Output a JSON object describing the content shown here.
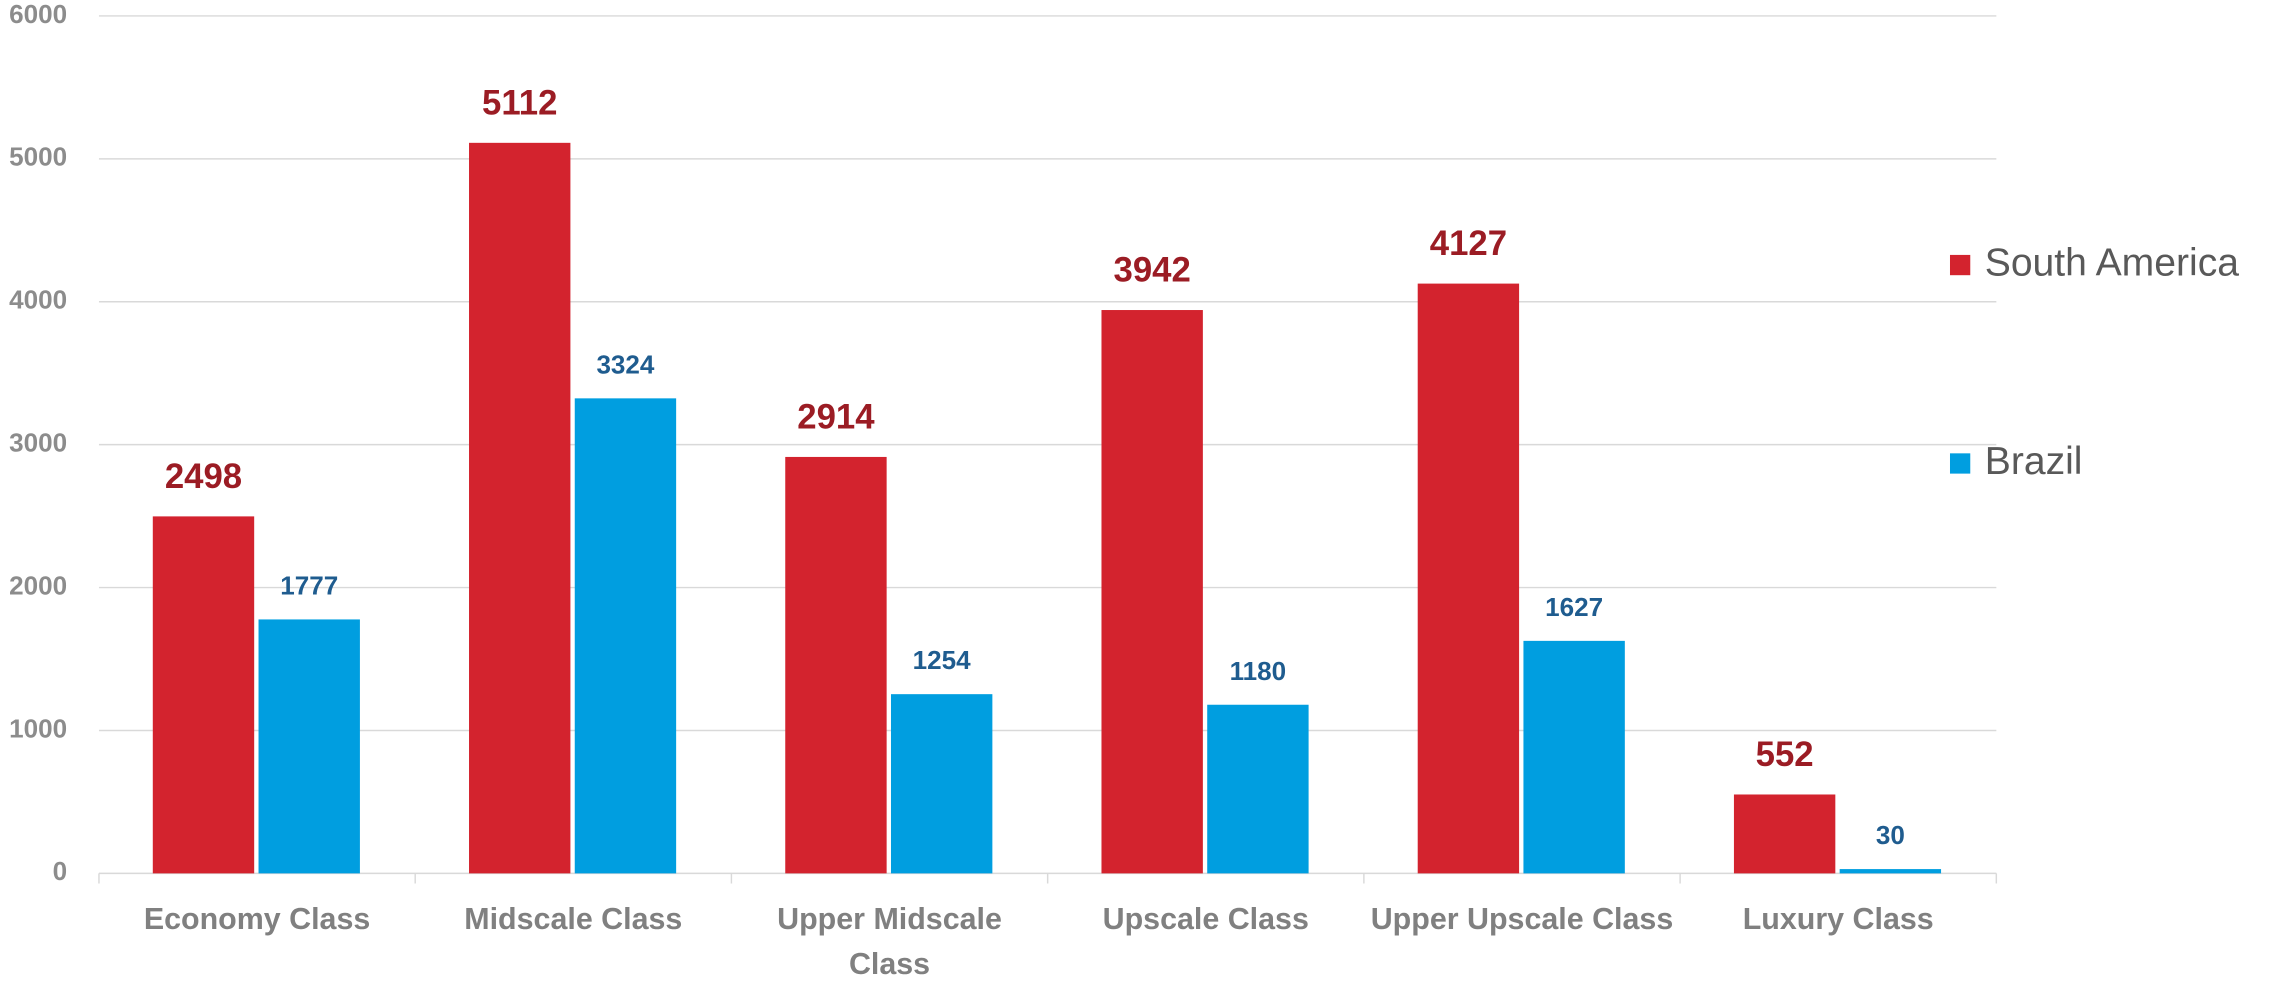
{
  "chart_data": {
    "type": "bar",
    "categories": [
      "Economy Class",
      "Midscale Class",
      "Upper Midscale Class",
      "Upscale Class",
      "Upper Upscale Class",
      "Luxury Class"
    ],
    "series": [
      {
        "name": "South America",
        "color": "#d3232e",
        "values": [
          2498,
          5112,
          2914,
          3942,
          4127,
          552
        ]
      },
      {
        "name": "Brazil",
        "color": "#009ee0",
        "values": [
          1777,
          3324,
          1254,
          1180,
          1627,
          30
        ]
      }
    ],
    "ylim": [
      0,
      6000
    ],
    "yticks": [
      0,
      1000,
      2000,
      3000,
      4000,
      5000,
      6000
    ],
    "grid": true,
    "legend": "right"
  }
}
